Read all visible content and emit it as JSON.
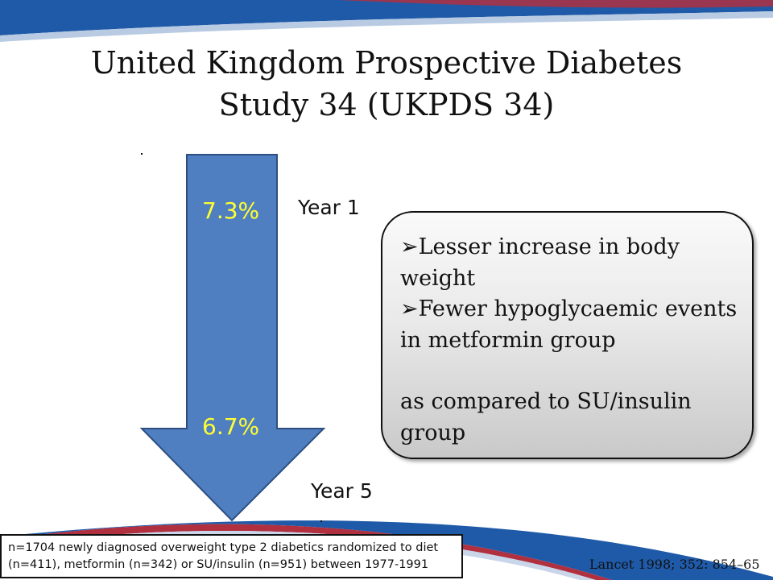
{
  "slide": {
    "title_line1": "United Kingdom Prospective Diabetes",
    "title_line2": "Study 34 (UKPDS 34)"
  },
  "arrow": {
    "top_value": "7.3%",
    "bottom_value": "6.7%",
    "fill_color": "#4f7fc0",
    "label_color": "#ffff33"
  },
  "timepoints": {
    "start": "Year 1",
    "end": "Year 5"
  },
  "callout": {
    "bullet_symbol": "➢",
    "bullets": [
      "Lesser increase in body weight",
      "Fewer hypoglycaemic events in metformin group"
    ],
    "comparison": "as compared to SU/insulin group"
  },
  "footnote": {
    "line1": "n=1704 newly diagnosed overweight type 2 diabetics randomized to diet",
    "line2": "(n=411), metformin (n=342) or SU/insulin (n=951) between 1977-1991"
  },
  "citation": "Lancet 1998; 352: 854–65",
  "theme": {
    "brand_blue": "#1f5aa8",
    "brand_red": "#b03040"
  }
}
